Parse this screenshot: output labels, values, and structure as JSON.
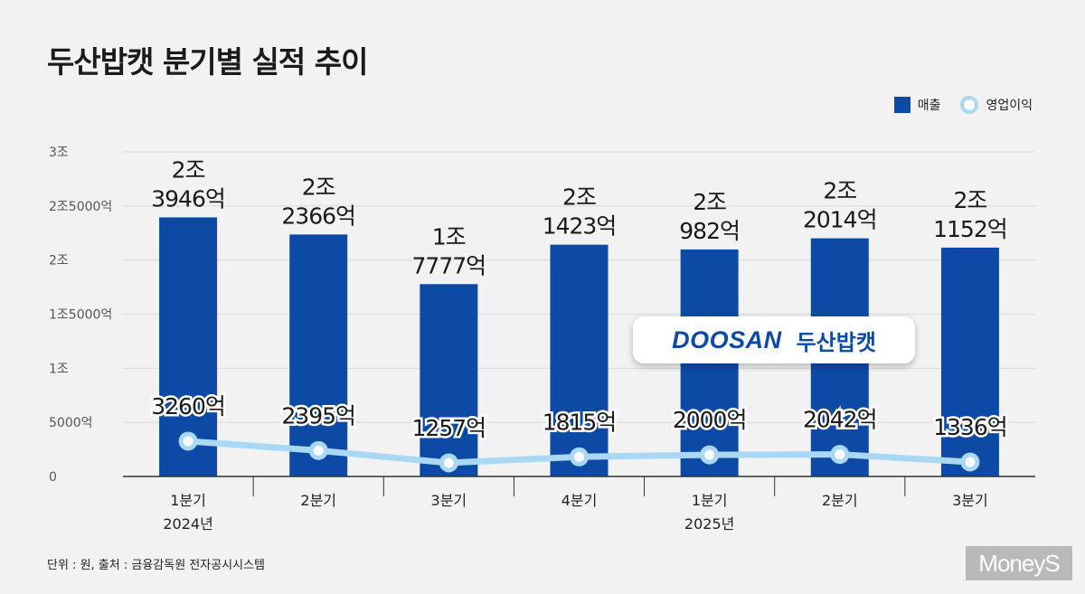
{
  "title": "두산밥캣 분기별 실적 추이",
  "legend": {
    "revenue": "매출",
    "operating_profit": "영업이익"
  },
  "footer": {
    "note": "단위 : 원, 출처 : 금융감독원 전자공시시스템"
  },
  "brand": "MoneyS",
  "logo": {
    "en": "DOOSAN",
    "ko": "두산밥캣"
  },
  "colors": {
    "bar": "#0d4aa5",
    "line": "#a9d8f5",
    "bg": "#f2f2f2",
    "grid": "#d9d9d9"
  },
  "chart_data": {
    "type": "bar",
    "title": "두산밥캣 분기별 실적 추이",
    "unit_note": "단위 : 원",
    "categories": [
      "1분기",
      "2분기",
      "3분기",
      "4분기",
      "1분기",
      "2분기",
      "3분기"
    ],
    "year_labels": [
      "2024년",
      "",
      "",
      "",
      "2025년",
      "",
      ""
    ],
    "ylim": [
      0,
      30000
    ],
    "yticks": [
      0,
      5000,
      10000,
      15000,
      20000,
      25000,
      30000
    ],
    "ytick_labels": [
      "0",
      "5000억",
      "1조",
      "1조5000억",
      "2조",
      "2조5000억",
      "3조"
    ],
    "series": [
      {
        "name": "매출",
        "type": "bar",
        "values": [
          23946,
          22366,
          17777,
          21423,
          20982,
          22014,
          21152
        ],
        "labels": [
          [
            "2조",
            "3946억"
          ],
          [
            "2조",
            "2366억"
          ],
          [
            "1조",
            "7777억"
          ],
          [
            "2조",
            "1423억"
          ],
          [
            "2조",
            "982억"
          ],
          [
            "2조",
            "2014억"
          ],
          [
            "2조",
            "1152억"
          ]
        ]
      },
      {
        "name": "영업이익",
        "type": "line",
        "values": [
          3260,
          2395,
          1257,
          1815,
          2000,
          2042,
          1336
        ],
        "labels": [
          "3260억",
          "2395억",
          "1257억",
          "1815억",
          "2000억",
          "2042억",
          "1336억"
        ]
      }
    ]
  }
}
